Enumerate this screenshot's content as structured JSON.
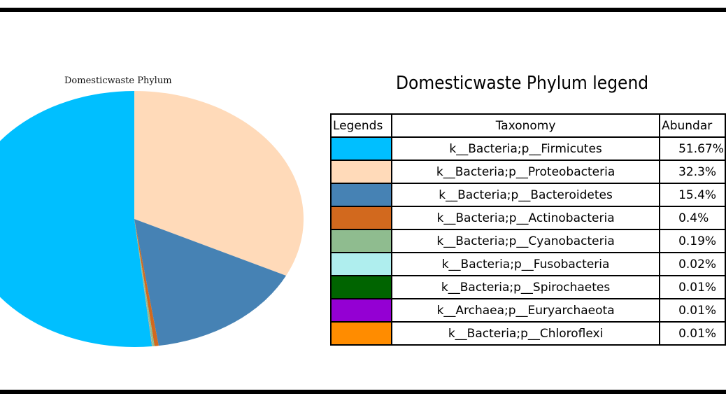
{
  "pie_title": "Domesticwaste Phylum",
  "legend_title": "Domesticwaste Phylum legend",
  "table": {
    "headers": {
      "legends": "Legends",
      "taxonomy": "Taxonomy",
      "abundance": "Abundar"
    }
  },
  "chart_data": {
    "type": "pie",
    "title": "Domesticwaste Phylum",
    "slices": [
      {
        "taxonomy": "k__Bacteria;p__Firmicutes",
        "abundance": "51.67%",
        "value": 51.67,
        "color": "#00BFFF"
      },
      {
        "taxonomy": "k__Bacteria;p__Proteobacteria",
        "abundance": "32.3%",
        "value": 32.3,
        "color": "#FFDAB9"
      },
      {
        "taxonomy": "k__Bacteria;p__Bacteroidetes",
        "abundance": "15.4%",
        "value": 15.4,
        "color": "#4682B4"
      },
      {
        "taxonomy": "k__Bacteria;p__Actinobacteria",
        "abundance": "0.4%",
        "value": 0.4,
        "color": "#D2691E"
      },
      {
        "taxonomy": "k__Bacteria;p__Cyanobacteria",
        "abundance": "0.19%",
        "value": 0.19,
        "color": "#8FBC8F"
      },
      {
        "taxonomy": "k__Bacteria;p__Fusobacteria",
        "abundance": "0.02%",
        "value": 0.02,
        "color": "#AFEEEE"
      },
      {
        "taxonomy": "k__Bacteria;p__Spirochaetes",
        "abundance": "0.01%",
        "value": 0.01,
        "color": "#006400"
      },
      {
        "taxonomy": "k__Archaea;p__Euryarchaeota",
        "abundance": "0.01%",
        "value": 0.01,
        "color": "#9400D3"
      },
      {
        "taxonomy": "k__Bacteria;p__Chloroflexi",
        "abundance": "0.01%",
        "value": 0.01,
        "color": "#FF8C00"
      }
    ]
  }
}
